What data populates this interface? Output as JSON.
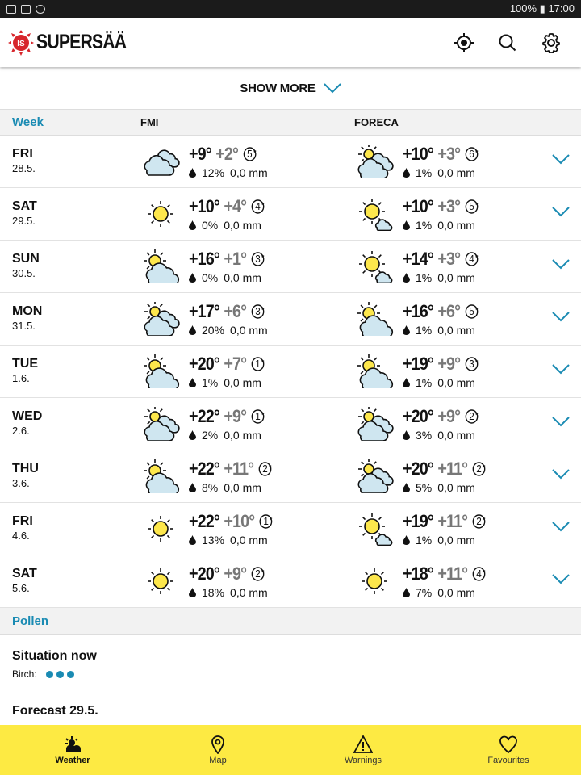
{
  "status": {
    "battery": "100%",
    "time": "17:00"
  },
  "app": {
    "title": "SUPERSÄÄ",
    "logo_mark": "IS"
  },
  "show_more": "SHOW MORE",
  "table": {
    "section": "Week",
    "col1": "FMI",
    "col2": "FORECA",
    "rows": [
      {
        "day": "FRI",
        "date": "28.5.",
        "fmi": {
          "icon": "cloudy",
          "hi": "+9°",
          "lo": "+2°",
          "wind": "5",
          "rain": "12%",
          "mm": "0,0 mm"
        },
        "foreca": {
          "icon": "sun-two-clouds",
          "hi": "+10°",
          "lo": "+3°",
          "wind": "6",
          "rain": "1%",
          "mm": "0,0 mm"
        }
      },
      {
        "day": "SAT",
        "date": "29.5.",
        "fmi": {
          "icon": "sunny",
          "hi": "+10°",
          "lo": "+4°",
          "wind": "4",
          "rain": "0%",
          "mm": "0,0 mm"
        },
        "foreca": {
          "icon": "mostly-sunny",
          "hi": "+10°",
          "lo": "+3°",
          "wind": "5",
          "rain": "1%",
          "mm": "0,0 mm"
        }
      },
      {
        "day": "SUN",
        "date": "30.5.",
        "fmi": {
          "icon": "partly-cloudy",
          "hi": "+16°",
          "lo": "+1°",
          "wind": "3",
          "rain": "0%",
          "mm": "0,0 mm"
        },
        "foreca": {
          "icon": "mostly-sunny",
          "hi": "+14°",
          "lo": "+3°",
          "wind": "4",
          "rain": "1%",
          "mm": "0,0 mm"
        }
      },
      {
        "day": "MON",
        "date": "31.5.",
        "fmi": {
          "icon": "sun-two-clouds",
          "hi": "+17°",
          "lo": "+6°",
          "wind": "3",
          "rain": "20%",
          "mm": "0,0 mm"
        },
        "foreca": {
          "icon": "partly-cloudy",
          "hi": "+16°",
          "lo": "+6°",
          "wind": "5",
          "rain": "1%",
          "mm": "0,0 mm"
        }
      },
      {
        "day": "TUE",
        "date": "1.6.",
        "fmi": {
          "icon": "partly-cloudy",
          "hi": "+20°",
          "lo": "+7°",
          "wind": "1",
          "rain": "1%",
          "mm": "0,0 mm"
        },
        "foreca": {
          "icon": "partly-cloudy",
          "hi": "+19°",
          "lo": "+9°",
          "wind": "3",
          "rain": "1%",
          "mm": "0,0 mm"
        }
      },
      {
        "day": "WED",
        "date": "2.6.",
        "fmi": {
          "icon": "sun-two-clouds",
          "hi": "+22°",
          "lo": "+9°",
          "wind": "1",
          "rain": "2%",
          "mm": "0,0 mm"
        },
        "foreca": {
          "icon": "sun-two-clouds",
          "hi": "+20°",
          "lo": "+9°",
          "wind": "2",
          "rain": "3%",
          "mm": "0,0 mm"
        }
      },
      {
        "day": "THU",
        "date": "3.6.",
        "fmi": {
          "icon": "partly-cloudy",
          "hi": "+22°",
          "lo": "+11°",
          "wind": "2",
          "rain": "8%",
          "mm": "0,0 mm"
        },
        "foreca": {
          "icon": "sun-two-clouds",
          "hi": "+20°",
          "lo": "+11°",
          "wind": "2",
          "rain": "5%",
          "mm": "0,0 mm"
        }
      },
      {
        "day": "FRI",
        "date": "4.6.",
        "fmi": {
          "icon": "sunny",
          "hi": "+22°",
          "lo": "+10°",
          "wind": "1",
          "rain": "13%",
          "mm": "0,0 mm"
        },
        "foreca": {
          "icon": "mostly-sunny",
          "hi": "+19°",
          "lo": "+11°",
          "wind": "2",
          "rain": "1%",
          "mm": "0,0 mm"
        }
      },
      {
        "day": "SAT",
        "date": "5.6.",
        "fmi": {
          "icon": "sunny",
          "hi": "+20°",
          "lo": "+9°",
          "wind": "2",
          "rain": "18%",
          "mm": "0,0 mm"
        },
        "foreca": {
          "icon": "sunny",
          "hi": "+18°",
          "lo": "+11°",
          "wind": "4",
          "rain": "7%",
          "mm": "0,0 mm"
        }
      }
    ]
  },
  "pollen": {
    "title": "Pollen",
    "situation": "Situation now",
    "birch_label": "Birch:",
    "birch_level": 3,
    "forecast": "Forecast 29.5."
  },
  "nav": [
    {
      "label": "Weather",
      "icon": "weather-icon",
      "active": true
    },
    {
      "label": "Map",
      "icon": "map-pin-icon"
    },
    {
      "label": "Warnings",
      "icon": "warning-icon"
    },
    {
      "label": "Favourites",
      "icon": "heart-icon"
    }
  ],
  "colors": {
    "accent": "#1a8bb3",
    "nav_bg": "#fdea43",
    "sun": "#fde74c",
    "cloud": "#cfe6f0",
    "brand_red": "#d7262c"
  }
}
